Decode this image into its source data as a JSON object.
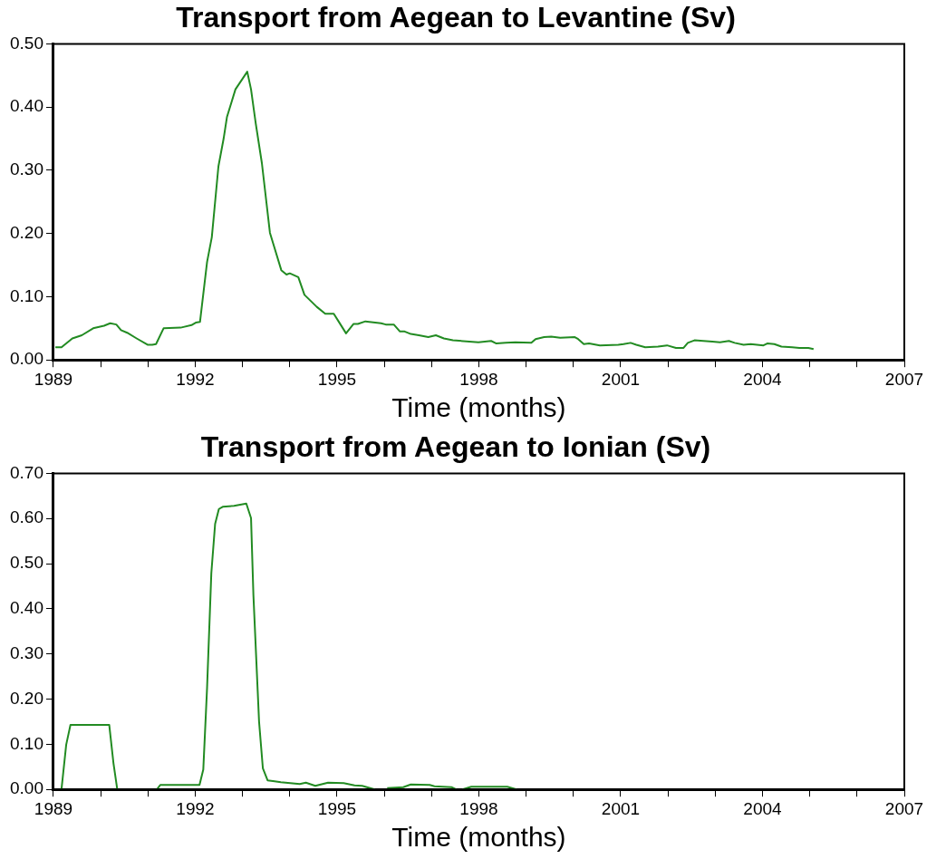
{
  "chart_data": [
    {
      "type": "line",
      "title": "Transport from Aegean to Levantine (Sv)",
      "xlabel": "Time (months)",
      "legend": false,
      "grid": false,
      "marker": "none",
      "line_style": "solid",
      "x": [
        1989.04,
        1989.17,
        1989.4,
        1989.6,
        1989.84,
        1990.07,
        1990.2,
        1990.33,
        1990.43,
        1990.56,
        1990.76,
        1990.99,
        1991.09,
        1991.17,
        1991.33,
        1991.69,
        1991.92,
        1992.01,
        1992.1,
        1992.25,
        1992.35,
        1992.49,
        1992.6,
        1992.67,
        1992.85,
        1993.1,
        1993.18,
        1993.28,
        1993.41,
        1993.58,
        1993.82,
        1993.93,
        1994.0,
        1994.18,
        1994.31,
        1994.57,
        1994.75,
        1994.93,
        1995.04,
        1995.19,
        1995.35,
        1995.44,
        1995.6,
        1995.93,
        1996.03,
        1996.2,
        1996.33,
        1996.43,
        1996.56,
        1996.73,
        1996.93,
        1997.09,
        1997.26,
        1997.45,
        1997.99,
        1998.26,
        1998.37,
        1998.57,
        1998.77,
        1999.11,
        1999.2,
        1999.38,
        1999.53,
        1999.72,
        2000.03,
        2000.1,
        2000.22,
        2000.33,
        2000.56,
        2000.95,
        2001.06,
        2001.21,
        2001.33,
        2001.52,
        2001.79,
        2001.98,
        2002.17,
        2002.33,
        2002.42,
        2002.56,
        2002.94,
        2003.1,
        2003.29,
        2003.41,
        2003.6,
        2003.75,
        2004.02,
        2004.1,
        2004.25,
        2004.4,
        2004.63,
        2004.78,
        2004.97,
        2005.08
      ],
      "series": [
        {
          "color": "#228b22",
          "values": [
            0.02,
            0.02,
            0.034,
            0.039,
            0.05,
            0.054,
            0.058,
            0.056,
            0.047,
            0.043,
            0.034,
            0.024,
            0.024,
            0.025,
            0.05,
            0.051,
            0.055,
            0.059,
            0.06,
            0.155,
            0.194,
            0.306,
            0.35,
            0.384,
            0.428,
            0.456,
            0.428,
            0.374,
            0.311,
            0.201,
            0.142,
            0.135,
            0.137,
            0.131,
            0.103,
            0.084,
            0.073,
            0.073,
            0.06,
            0.042,
            0.057,
            0.057,
            0.061,
            0.058,
            0.056,
            0.056,
            0.045,
            0.045,
            0.041,
            0.039,
            0.036,
            0.039,
            0.034,
            0.031,
            0.028,
            0.03,
            0.026,
            0.027,
            0.028,
            0.027,
            0.033,
            0.036,
            0.037,
            0.035,
            0.036,
            0.033,
            0.025,
            0.026,
            0.023,
            0.024,
            0.025,
            0.027,
            0.024,
            0.02,
            0.021,
            0.023,
            0.019,
            0.019,
            0.027,
            0.031,
            0.029,
            0.028,
            0.03,
            0.027,
            0.024,
            0.025,
            0.023,
            0.026,
            0.025,
            0.021,
            0.02,
            0.019,
            0.019,
            0.017
          ]
        }
      ],
      "xlim": [
        1989,
        2007
      ],
      "xticks": [
        1989,
        {
          "value": 1990,
          "label": null
        },
        {
          "value": 1991,
          "label": null
        },
        1992,
        {
          "value": 1993,
          "label": null
        },
        {
          "value": 1994,
          "label": null
        },
        1995,
        {
          "value": 1996,
          "label": null
        },
        {
          "value": 1997,
          "label": null
        },
        1998,
        {
          "value": 1999,
          "label": null
        },
        {
          "value": 2000,
          "label": null
        },
        2001,
        {
          "value": 2002,
          "label": null
        },
        {
          "value": 2003,
          "label": null
        },
        2004,
        {
          "value": 2005,
          "label": null
        },
        {
          "value": 2006,
          "label": null
        },
        2007
      ],
      "ylim": [
        0,
        0.5
      ],
      "yticks": [
        {
          "value": 0,
          "label": "0.00"
        },
        {
          "value": 0.1,
          "label": "0.10"
        },
        {
          "value": 0.2,
          "label": "0.20"
        },
        {
          "value": 0.3,
          "label": "0.30"
        },
        {
          "value": 0.4,
          "label": "0.40"
        },
        {
          "value": 0.5,
          "label": "0.50"
        }
      ]
    },
    {
      "type": "line",
      "title": "Transport from Aegean to Ionian (Sv)",
      "xlabel": "Time (months)",
      "legend": false,
      "grid": false,
      "marker": "none",
      "line_style": "solid",
      "x": [
        1989.17,
        1989.27,
        1989.36,
        1990.18,
        1990.27,
        1990.35,
        1990.8,
        1991.19,
        1991.26,
        1992.09,
        1992.17,
        1992.25,
        1992.34,
        1992.42,
        1992.5,
        1992.58,
        1992.82,
        1993.08,
        1993.18,
        1993.23,
        1993.35,
        1993.43,
        1993.53,
        1993.68,
        1993.81,
        1994.01,
        1994.21,
        1994.34,
        1994.54,
        1994.81,
        1995.14,
        1995.37,
        1995.53,
        1995.8,
        1995.95,
        1996.06,
        1996.4,
        1996.56,
        1996.96,
        1997.06,
        1997.42,
        1997.52,
        1997.58,
        1997.65,
        1997.84,
        1998.19,
        1998.6,
        1998.8
      ],
      "series": [
        {
          "color": "#228b22",
          "values": [
            0,
            0.099,
            0.143,
            0.143,
            0.058,
            0,
            null,
            0,
            0.01,
            0.01,
            0.044,
            0.225,
            0.479,
            0.588,
            0.621,
            0.626,
            0.628,
            0.633,
            0.601,
            0.431,
            0.15,
            0.047,
            0.02,
            0.018,
            0.016,
            0.014,
            0.012,
            0.015,
            0.008,
            0.015,
            0.014,
            0.009,
            0.008,
            0,
            null,
            0.003,
            0.005,
            0.011,
            0.01,
            0.007,
            0.005,
            0,
            null,
            0,
            0.006,
            0.006,
            0.006,
            0
          ]
        }
      ],
      "xlim": [
        1989,
        2007
      ],
      "xticks": [
        1989,
        {
          "value": 1990,
          "label": null
        },
        {
          "value": 1991,
          "label": null
        },
        1992,
        {
          "value": 1993,
          "label": null
        },
        {
          "value": 1994,
          "label": null
        },
        1995,
        {
          "value": 1996,
          "label": null
        },
        {
          "value": 1997,
          "label": null
        },
        1998,
        {
          "value": 1999,
          "label": null
        },
        {
          "value": 2000,
          "label": null
        },
        2001,
        {
          "value": 2002,
          "label": null
        },
        {
          "value": 2003,
          "label": null
        },
        2004,
        {
          "value": 2005,
          "label": null
        },
        {
          "value": 2006,
          "label": null
        },
        2007
      ],
      "ylim": [
        0,
        0.7
      ],
      "yticks": [
        {
          "value": 0,
          "label": "0.00"
        },
        {
          "value": 0.1,
          "label": "0.10"
        },
        {
          "value": 0.2,
          "label": "0.20"
        },
        {
          "value": 0.3,
          "label": "0.30"
        },
        {
          "value": 0.4,
          "label": "0.40"
        },
        {
          "value": 0.5,
          "label": "0.50"
        },
        {
          "value": 0.6,
          "label": "0.60"
        },
        {
          "value": 0.7,
          "label": "0.70"
        }
      ]
    }
  ]
}
